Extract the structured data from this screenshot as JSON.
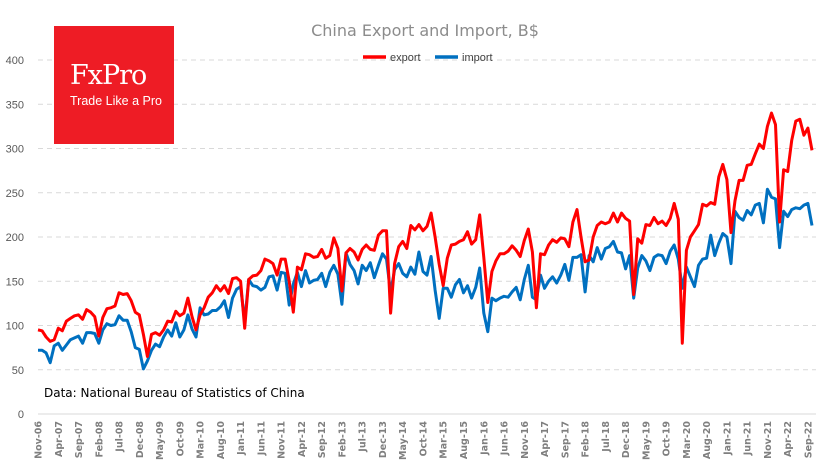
{
  "logo": {
    "name": "FxPro",
    "tagline": "Trade Like a Pro"
  },
  "chart_data": {
    "type": "line",
    "title": "China Export and Import, B$",
    "xlabel": "",
    "ylabel": "",
    "ylim": [
      0,
      400
    ],
    "yticks": [
      0,
      50,
      100,
      150,
      200,
      250,
      300,
      350,
      400
    ],
    "grid": true,
    "legend_position": "top-center",
    "x_start": "Nov-06",
    "frequency": "monthly",
    "xtick_every_months": 5,
    "xtick_labels": [
      "Nov-06",
      "Apr-07",
      "Sep-07",
      "Feb-08",
      "Jul-08",
      "Dec-08",
      "May-09",
      "Oct-09",
      "Mar-10",
      "Aug-10",
      "Jan-11",
      "Jun-11",
      "Nov-11",
      "Apr-12",
      "Sep-12",
      "Feb-13",
      "Jul-13",
      "Dec-13",
      "May-14",
      "Oct-14",
      "Mar-15",
      "Aug-15",
      "Jan-16",
      "Jun-16",
      "Nov-16",
      "Apr-17",
      "Sep-17",
      "Feb-18",
      "Jul-18",
      "Dec-18",
      "May-19",
      "Oct-19",
      "Mar-20",
      "Aug-20",
      "Jan-21",
      "Jun-21",
      "Nov-21",
      "Apr-22",
      "Sep-22"
    ],
    "annotation": "Data: National Bureau of Statistics of China",
    "series": [
      {
        "name": "export",
        "color": "#ff0000",
        "values": [
          95,
          94,
          87,
          82,
          84,
          97,
          94,
          105,
          108,
          111,
          112,
          107,
          118,
          115,
          110,
          88,
          109,
          119,
          120,
          122,
          137,
          135,
          136,
          128,
          115,
          112,
          90,
          65,
          90,
          92,
          89,
          95,
          105,
          104,
          116,
          111,
          114,
          131,
          110,
          95,
          112,
          120,
          132,
          137,
          145,
          139,
          145,
          136,
          153,
          154,
          150,
          97,
          152,
          156,
          157,
          162,
          175,
          173,
          170,
          157,
          175,
          175,
          150,
          115,
          166,
          163,
          181,
          180,
          177,
          178,
          186,
          176,
          179,
          199,
          187,
          139,
          182,
          187,
          183,
          174,
          186,
          191,
          186,
          185,
          202,
          207,
          207,
          114,
          170,
          189,
          195,
          187,
          213,
          208,
          214,
          207,
          212,
          227,
          200,
          169,
          145,
          176,
          191,
          192,
          195,
          197,
          206,
          192,
          197,
          225,
          177,
          126,
          161,
          173,
          181,
          181,
          184,
          190,
          185,
          178,
          196,
          209,
          183,
          120,
          181,
          180,
          191,
          197,
          194,
          199,
          198,
          189,
          217,
          231,
          200,
          172,
          174,
          200,
          213,
          217,
          215,
          217,
          227,
          217,
          227,
          221,
          218,
          135,
          198,
          193,
          214,
          213,
          222,
          215,
          218,
          213,
          221,
          238,
          220,
          80,
          185,
          200,
          207,
          214,
          237,
          235,
          239,
          237,
          268,
          282,
          265,
          205,
          241,
          264,
          264,
          281,
          282,
          294,
          305,
          300,
          325,
          340,
          327,
          217,
          276,
          274,
          309,
          331,
          333,
          315,
          323,
          298
        ]
      },
      {
        "name": "import",
        "color": "#0070c0",
        "values": [
          72,
          72,
          69,
          58,
          77,
          80,
          72,
          78,
          84,
          86,
          88,
          80,
          92,
          92,
          91,
          80,
          95,
          102,
          100,
          101,
          111,
          106,
          106,
          93,
          75,
          73,
          51,
          60,
          72,
          79,
          76,
          87,
          95,
          88,
          103,
          87,
          95,
          112,
          96,
          87,
          120,
          112,
          113,
          117,
          117,
          121,
          128,
          109,
          131,
          141,
          144,
          104,
          152,
          145,
          144,
          140,
          143,
          155,
          156,
          140,
          160,
          159,
          123,
          147,
          160,
          144,
          162,
          148,
          151,
          152,
          159,
          144,
          160,
          168,
          158,
          124,
          182,
          169,
          162,
          147,
          168,
          162,
          171,
          154,
          168,
          181,
          175,
          137,
          163,
          170,
          159,
          155,
          166,
          158,
          183,
          161,
          157,
          178,
          140,
          108,
          142,
          142,
          132,
          146,
          152,
          137,
          145,
          131,
          143,
          165,
          114,
          93,
          131,
          128,
          131,
          133,
          132,
          138,
          143,
          129,
          152,
          168,
          132,
          129,
          157,
          142,
          150,
          155,
          148,
          157,
          169,
          151,
          177,
          177,
          180,
          138,
          179,
          172,
          188,
          175,
          187,
          189,
          195,
          183,
          182,
          164,
          179,
          131,
          165,
          179,
          173,
          162,
          177,
          180,
          179,
          170,
          184,
          191,
          175,
          142,
          166,
          155,
          144,
          168,
          175,
          176,
          202,
          179,
          193,
          204,
          200,
          170,
          229,
          222,
          219,
          230,
          225,
          236,
          238,
          216,
          254,
          245,
          243,
          188,
          229,
          223,
          231,
          233,
          232,
          236,
          238,
          213
        ]
      }
    ]
  }
}
